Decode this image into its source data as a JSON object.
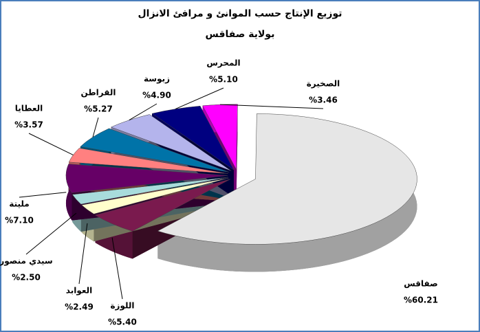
{
  "chart_data": {
    "type": "pie3d",
    "title": "توزيع الإنتاج حسب الموانئ و مرافئ الانزال",
    "subtitle": "بولاية صفاقس",
    "categories": [
      "الصخيرة",
      "صفاقس",
      "اللوزة",
      "العوابد",
      "سيدي منصور",
      "مليتة",
      "العطايا",
      "القراطن",
      "زبوسة",
      "المحرس"
    ],
    "values": [
      3.46,
      60.21,
      5.4,
      2.49,
      2.5,
      7.1,
      3.57,
      5.27,
      4.9,
      5.1
    ],
    "value_labels": [
      "%3.46",
      "%60.21",
      "%5.40",
      "%2.49",
      "%2.50",
      "%7.10",
      "%3.57",
      "%5.27",
      "%4.90",
      "%5.10"
    ],
    "colors": [
      "#ff00ff",
      "#e6e6e6",
      "#7a1a4e",
      "#ffffcc",
      "#a8dcdc",
      "#660066",
      "#ff8080",
      "#0073a8",
      "#b4b4ec",
      "#000080"
    ]
  }
}
